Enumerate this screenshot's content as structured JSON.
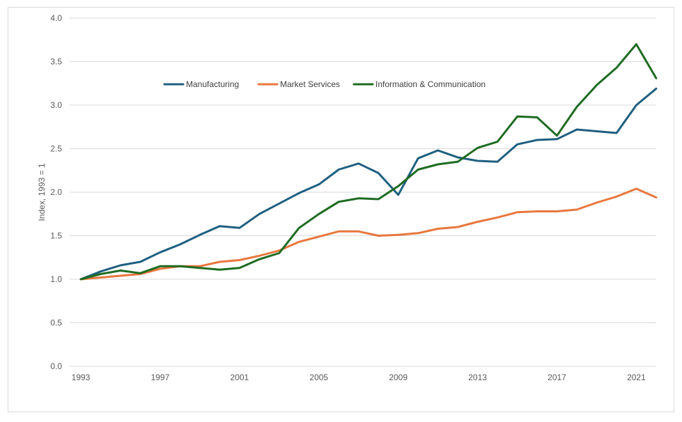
{
  "chart_data": {
    "type": "line",
    "title": "",
    "xlabel": "",
    "ylabel": "Index, 1993 = 1",
    "ylim": [
      0,
      4
    ],
    "yticks": [
      "0.0",
      "0.5",
      "1.0",
      "1.5",
      "2.0",
      "2.5",
      "3.0",
      "3.5",
      "4.0"
    ],
    "xticks": [
      "1993",
      "1997",
      "2001",
      "2005",
      "2009",
      "2013",
      "2017",
      "2021"
    ],
    "grid": true,
    "legend_position": "top",
    "x": [
      1993,
      1994,
      1995,
      1996,
      1997,
      1998,
      1999,
      2000,
      2001,
      2002,
      2003,
      2004,
      2005,
      2006,
      2007,
      2008,
      2009,
      2010,
      2011,
      2012,
      2013,
      2014,
      2015,
      2016,
      2017,
      2018,
      2019,
      2020,
      2021,
      2022
    ],
    "series": [
      {
        "name": "Manufacturing",
        "color": "#1f5f80",
        "values": [
          1.0,
          1.09,
          1.16,
          1.2,
          1.31,
          1.4,
          1.51,
          1.61,
          1.59,
          1.75,
          1.87,
          1.99,
          2.09,
          2.26,
          2.33,
          2.22,
          1.97,
          2.39,
          2.48,
          2.4,
          2.36,
          2.35,
          2.55,
          2.6,
          2.61,
          2.72,
          2.7,
          2.68,
          3.0,
          3.19
        ]
      },
      {
        "name": "Market Services",
        "color": "#e8773e",
        "values": [
          1.0,
          1.02,
          1.04,
          1.06,
          1.12,
          1.15,
          1.15,
          1.2,
          1.22,
          1.27,
          1.33,
          1.43,
          1.49,
          1.55,
          1.55,
          1.5,
          1.51,
          1.53,
          1.58,
          1.6,
          1.66,
          1.71,
          1.77,
          1.78,
          1.78,
          1.8,
          1.88,
          1.95,
          2.04,
          1.94
        ]
      },
      {
        "name": "Information & Communication",
        "color": "#1e6b21",
        "values": [
          1.0,
          1.06,
          1.1,
          1.07,
          1.15,
          1.15,
          1.13,
          1.11,
          1.13,
          1.23,
          1.3,
          1.59,
          1.75,
          1.89,
          1.93,
          1.92,
          2.07,
          2.26,
          2.32,
          2.35,
          2.51,
          2.58,
          2.87,
          2.86,
          2.65,
          2.98,
          3.23,
          3.43,
          3.7,
          3.31
        ]
      }
    ]
  }
}
